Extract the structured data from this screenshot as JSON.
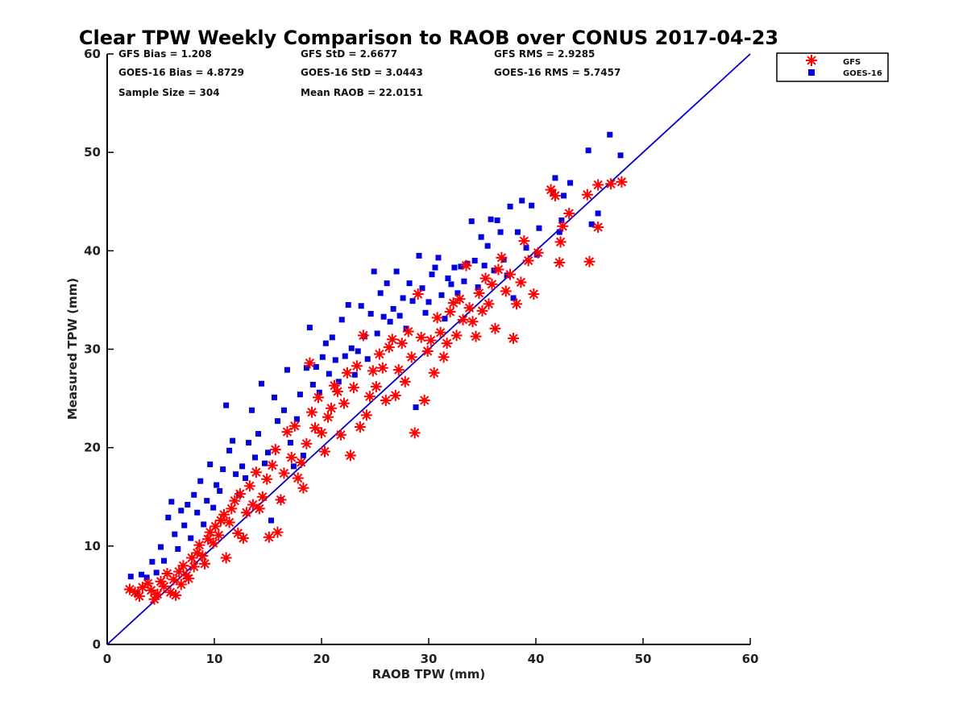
{
  "chart_data": {
    "type": "scatter",
    "title": "Clear TPW Weekly Comparison to RAOB over CONUS 2017-04-23",
    "xlabel": "RAOB TPW (mm)",
    "ylabel": "Measured TPW (mm)",
    "xlim": [
      0,
      60
    ],
    "ylim": [
      0,
      60
    ],
    "xticks": [
      "0",
      "10",
      "20",
      "30",
      "40",
      "50",
      "60"
    ],
    "yticks": [
      "0",
      "10",
      "20",
      "30",
      "40",
      "50",
      "60"
    ],
    "grid": false,
    "legend_position": "outside-top-right",
    "reference_line": {
      "type": "one-to-one",
      "color": "#0000cc"
    },
    "stats": [
      "GFS Bias = 1.208",
      "GFS StD = 2.6677",
      "GFS RMS = 2.9285",
      "GOES-16 Bias = 4.8729",
      "GOES-16 StD = 3.0443",
      "GOES-16 RMS = 5.7457",
      "Sample Size = 304",
      "Mean RAOB = 22.0151"
    ],
    "series": [
      {
        "name": "GFS",
        "color": "#ff0000",
        "marker": "asterisk",
        "points": [
          [
            2.1,
            5.6
          ],
          [
            2.6,
            5.3
          ],
          [
            3.0,
            4.9
          ],
          [
            3.3,
            5.8
          ],
          [
            3.8,
            6.2
          ],
          [
            4.1,
            5.5
          ],
          [
            4.4,
            4.6
          ],
          [
            4.7,
            5.1
          ],
          [
            5.0,
            6.4
          ],
          [
            5.3,
            5.9
          ],
          [
            5.6,
            7.2
          ],
          [
            5.9,
            5.3
          ],
          [
            6.2,
            6.6
          ],
          [
            6.4,
            5.0
          ],
          [
            6.7,
            7.4
          ],
          [
            6.9,
            6.1
          ],
          [
            7.1,
            8.0
          ],
          [
            7.4,
            7.0
          ],
          [
            7.6,
            6.7
          ],
          [
            7.9,
            8.8
          ],
          [
            8.1,
            7.9
          ],
          [
            8.4,
            9.3
          ],
          [
            8.6,
            10.1
          ],
          [
            8.9,
            9.0
          ],
          [
            9.1,
            8.2
          ],
          [
            9.4,
            10.7
          ],
          [
            9.6,
            11.4
          ],
          [
            9.9,
            10.3
          ],
          [
            10.1,
            12.0
          ],
          [
            10.4,
            11.1
          ],
          [
            10.6,
            12.6
          ],
          [
            10.9,
            13.2
          ],
          [
            11.1,
            8.8
          ],
          [
            11.4,
            12.4
          ],
          [
            11.6,
            13.8
          ],
          [
            11.9,
            14.6
          ],
          [
            12.2,
            11.3
          ],
          [
            12.4,
            15.3
          ],
          [
            12.7,
            10.8
          ],
          [
            13.0,
            13.4
          ],
          [
            13.3,
            16.1
          ],
          [
            13.6,
            14.2
          ],
          [
            13.9,
            17.5
          ],
          [
            14.2,
            13.8
          ],
          [
            14.5,
            15.0
          ],
          [
            14.9,
            16.8
          ],
          [
            15.1,
            10.9
          ],
          [
            15.4,
            18.2
          ],
          [
            15.7,
            19.8
          ],
          [
            15.9,
            11.4
          ],
          [
            16.2,
            14.7
          ],
          [
            16.5,
            17.4
          ],
          [
            16.8,
            21.6
          ],
          [
            17.2,
            19.0
          ],
          [
            17.5,
            22.2
          ],
          [
            17.8,
            16.9
          ],
          [
            18.1,
            18.5
          ],
          [
            18.3,
            15.9
          ],
          [
            18.6,
            20.4
          ],
          [
            18.9,
            28.6
          ],
          [
            19.1,
            23.6
          ],
          [
            19.4,
            22.0
          ],
          [
            19.7,
            25.1
          ],
          [
            20.0,
            21.5
          ],
          [
            20.3,
            19.6
          ],
          [
            20.6,
            23.1
          ],
          [
            20.9,
            24.0
          ],
          [
            21.2,
            26.3
          ],
          [
            21.5,
            25.7
          ],
          [
            21.8,
            21.3
          ],
          [
            22.1,
            24.5
          ],
          [
            22.4,
            27.6
          ],
          [
            22.7,
            19.2
          ],
          [
            23.0,
            26.1
          ],
          [
            23.3,
            28.3
          ],
          [
            23.6,
            22.1
          ],
          [
            23.9,
            31.4
          ],
          [
            24.2,
            23.3
          ],
          [
            24.5,
            25.2
          ],
          [
            24.8,
            27.8
          ],
          [
            25.1,
            26.2
          ],
          [
            25.4,
            29.5
          ],
          [
            25.7,
            28.1
          ],
          [
            26.0,
            24.8
          ],
          [
            26.3,
            30.2
          ],
          [
            26.6,
            31.0
          ],
          [
            26.9,
            25.3
          ],
          [
            27.2,
            27.9
          ],
          [
            27.5,
            30.6
          ],
          [
            27.8,
            26.7
          ],
          [
            28.1,
            31.8
          ],
          [
            28.4,
            29.2
          ],
          [
            28.7,
            21.5
          ],
          [
            29.0,
            35.6
          ],
          [
            29.3,
            31.2
          ],
          [
            29.6,
            24.8
          ],
          [
            29.9,
            29.8
          ],
          [
            30.2,
            30.9
          ],
          [
            30.5,
            27.6
          ],
          [
            30.8,
            33.2
          ],
          [
            31.1,
            31.7
          ],
          [
            31.4,
            29.2
          ],
          [
            31.7,
            30.6
          ],
          [
            32.0,
            33.8
          ],
          [
            32.3,
            34.7
          ],
          [
            32.6,
            31.4
          ],
          [
            32.9,
            35.1
          ],
          [
            33.2,
            33.0
          ],
          [
            33.5,
            38.5
          ],
          [
            33.8,
            34.2
          ],
          [
            34.1,
            32.8
          ],
          [
            34.4,
            31.3
          ],
          [
            34.7,
            35.7
          ],
          [
            35.0,
            33.9
          ],
          [
            35.3,
            37.2
          ],
          [
            35.6,
            34.6
          ],
          [
            35.9,
            36.6
          ],
          [
            36.2,
            32.1
          ],
          [
            36.5,
            38.1
          ],
          [
            36.8,
            39.3
          ],
          [
            37.2,
            35.9
          ],
          [
            37.6,
            37.6
          ],
          [
            37.9,
            31.1
          ],
          [
            38.2,
            34.6
          ],
          [
            38.6,
            36.8
          ],
          [
            38.9,
            41.0
          ],
          [
            39.3,
            39.0
          ],
          [
            39.8,
            35.6
          ],
          [
            40.2,
            39.8
          ],
          [
            41.4,
            46.2
          ],
          [
            41.8,
            45.6
          ],
          [
            42.2,
            38.8
          ],
          [
            42.3,
            40.9
          ],
          [
            42.5,
            42.5
          ],
          [
            43.1,
            43.8
          ],
          [
            44.8,
            45.7
          ],
          [
            45.0,
            38.9
          ],
          [
            45.8,
            42.4
          ],
          [
            45.8,
            46.7
          ],
          [
            47.0,
            46.8
          ],
          [
            48.0,
            47.0
          ]
        ]
      },
      {
        "name": "GOES-16",
        "color": "#0000e0",
        "marker": "square",
        "points": [
          [
            2.2,
            6.9
          ],
          [
            2.8,
            5.2
          ],
          [
            3.2,
            7.1
          ],
          [
            3.7,
            6.8
          ],
          [
            4.2,
            8.4
          ],
          [
            4.6,
            7.3
          ],
          [
            5.0,
            9.9
          ],
          [
            5.3,
            8.5
          ],
          [
            5.7,
            12.9
          ],
          [
            6.0,
            14.5
          ],
          [
            6.3,
            11.2
          ],
          [
            6.6,
            9.7
          ],
          [
            6.9,
            13.6
          ],
          [
            7.2,
            12.1
          ],
          [
            7.5,
            14.2
          ],
          [
            7.8,
            10.8
          ],
          [
            8.1,
            15.2
          ],
          [
            8.4,
            13.4
          ],
          [
            8.7,
            16.6
          ],
          [
            9.0,
            12.2
          ],
          [
            9.3,
            14.6
          ],
          [
            9.6,
            18.3
          ],
          [
            9.9,
            13.9
          ],
          [
            10.2,
            16.2
          ],
          [
            10.5,
            15.6
          ],
          [
            10.8,
            17.8
          ],
          [
            11.1,
            24.3
          ],
          [
            11.4,
            19.7
          ],
          [
            11.7,
            20.7
          ],
          [
            12.0,
            17.3
          ],
          [
            12.3,
            15.2
          ],
          [
            12.6,
            18.1
          ],
          [
            12.9,
            16.9
          ],
          [
            13.2,
            20.5
          ],
          [
            13.5,
            23.8
          ],
          [
            13.8,
            19.0
          ],
          [
            14.1,
            21.4
          ],
          [
            14.4,
            26.5
          ],
          [
            14.7,
            18.4
          ],
          [
            15.0,
            19.5
          ],
          [
            15.3,
            12.6
          ],
          [
            15.6,
            25.1
          ],
          [
            15.9,
            22.7
          ],
          [
            16.2,
            14.7
          ],
          [
            16.5,
            23.8
          ],
          [
            16.8,
            27.9
          ],
          [
            17.1,
            20.5
          ],
          [
            17.4,
            18.1
          ],
          [
            17.7,
            22.9
          ],
          [
            18.0,
            25.4
          ],
          [
            18.3,
            19.2
          ],
          [
            18.6,
            28.1
          ],
          [
            18.9,
            32.2
          ],
          [
            19.2,
            26.4
          ],
          [
            19.5,
            28.2
          ],
          [
            19.8,
            25.6
          ],
          [
            20.1,
            29.2
          ],
          [
            20.4,
            30.6
          ],
          [
            20.7,
            27.5
          ],
          [
            21.0,
            31.2
          ],
          [
            21.3,
            28.9
          ],
          [
            21.6,
            26.7
          ],
          [
            21.9,
            33.0
          ],
          [
            22.2,
            29.3
          ],
          [
            22.5,
            34.5
          ],
          [
            22.8,
            30.1
          ],
          [
            23.1,
            27.4
          ],
          [
            23.4,
            29.8
          ],
          [
            23.7,
            34.4
          ],
          [
            24.0,
            31.3
          ],
          [
            24.3,
            29.0
          ],
          [
            24.6,
            33.6
          ],
          [
            24.9,
            37.9
          ],
          [
            25.2,
            31.6
          ],
          [
            25.5,
            35.7
          ],
          [
            25.8,
            33.3
          ],
          [
            26.1,
            36.7
          ],
          [
            26.4,
            32.8
          ],
          [
            26.7,
            34.1
          ],
          [
            27.0,
            37.9
          ],
          [
            27.3,
            33.4
          ],
          [
            27.6,
            35.2
          ],
          [
            27.9,
            32.1
          ],
          [
            28.2,
            36.7
          ],
          [
            28.5,
            34.9
          ],
          [
            28.8,
            24.1
          ],
          [
            29.1,
            39.5
          ],
          [
            29.4,
            36.2
          ],
          [
            29.7,
            33.7
          ],
          [
            30.0,
            34.8
          ],
          [
            30.3,
            37.6
          ],
          [
            30.6,
            38.3
          ],
          [
            30.9,
            39.3
          ],
          [
            31.2,
            35.5
          ],
          [
            31.5,
            33.1
          ],
          [
            31.8,
            37.2
          ],
          [
            32.1,
            36.6
          ],
          [
            32.4,
            38.3
          ],
          [
            32.7,
            35.7
          ],
          [
            33.0,
            38.4
          ],
          [
            33.3,
            36.9
          ],
          [
            33.6,
            38.7
          ],
          [
            34.0,
            43.0
          ],
          [
            34.3,
            39.0
          ],
          [
            34.6,
            36.3
          ],
          [
            34.9,
            41.4
          ],
          [
            35.2,
            38.5
          ],
          [
            35.5,
            40.5
          ],
          [
            35.8,
            43.2
          ],
          [
            36.1,
            38.0
          ],
          [
            36.4,
            43.1
          ],
          [
            36.7,
            41.9
          ],
          [
            37.0,
            39.1
          ],
          [
            37.3,
            37.5
          ],
          [
            37.6,
            44.5
          ],
          [
            37.9,
            35.2
          ],
          [
            38.3,
            41.9
          ],
          [
            38.7,
            45.1
          ],
          [
            39.1,
            40.3
          ],
          [
            39.6,
            44.6
          ],
          [
            40.1,
            39.6
          ],
          [
            40.3,
            42.3
          ],
          [
            41.6,
            45.9
          ],
          [
            41.8,
            47.4
          ],
          [
            42.4,
            43.1
          ],
          [
            42.6,
            45.6
          ],
          [
            42.2,
            41.9
          ],
          [
            43.2,
            46.9
          ],
          [
            44.9,
            50.2
          ],
          [
            45.2,
            42.7
          ],
          [
            45.8,
            43.8
          ],
          [
            46.9,
            51.8
          ],
          [
            47.9,
            49.7
          ]
        ]
      }
    ]
  }
}
